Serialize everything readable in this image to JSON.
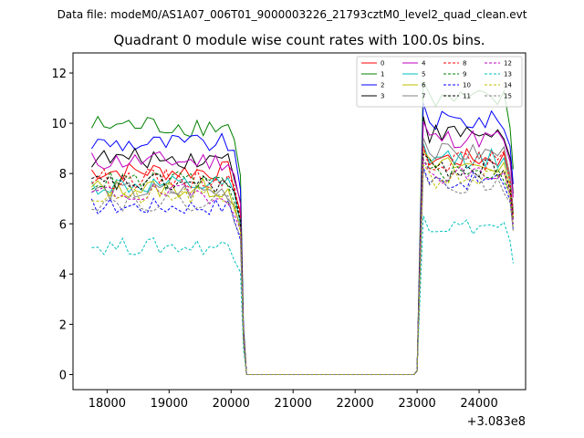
{
  "suptitle": "Data file: modeM0/AS1A07_006T01_9000003226_21793cztM0_level2_quad_clean.evt",
  "chart_data": {
    "type": "line",
    "title": "Quadrant 0 module wise count rates with 100.0s bins.",
    "xlabel": "",
    "ylabel": "",
    "x_offset_label": "+3.083e8",
    "xlim": [
      17450,
      24750
    ],
    "ylim": [
      -0.6,
      12.8
    ],
    "xticks": [
      18000,
      19000,
      20000,
      21000,
      22000,
      23000,
      24000
    ],
    "xtick_labels": [
      "18000",
      "19000",
      "20000",
      "21000",
      "22000",
      "23000",
      "24000"
    ],
    "yticks": [
      0,
      2,
      4,
      6,
      8,
      10,
      12
    ],
    "ytick_labels": [
      "0",
      "2",
      "4",
      "6",
      "8",
      "10",
      "12"
    ],
    "grid": false,
    "legend_position": "top-right",
    "segments": {
      "seg1_start": 17750,
      "seg1_end": 20150,
      "seg2_start": 23100,
      "seg2_end": 24550,
      "step": 100
    },
    "series": [
      {
        "name": "0",
        "color": "#ff0000",
        "dash": false,
        "level1": 8.1,
        "level2": 8.6,
        "noise": 0.4
      },
      {
        "name": "1",
        "color": "#008000",
        "dash": false,
        "level1": 9.9,
        "level2": 10.9,
        "noise": 0.45
      },
      {
        "name": "2",
        "color": "#0000ff",
        "dash": false,
        "level1": 9.2,
        "level2": 10.1,
        "noise": 0.4
      },
      {
        "name": "3",
        "color": "#000000",
        "dash": false,
        "level1": 8.6,
        "level2": 9.6,
        "noise": 0.4
      },
      {
        "name": "4",
        "color": "#bf00bf",
        "dash": false,
        "level1": 8.5,
        "level2": 9.4,
        "noise": 0.4
      },
      {
        "name": "5",
        "color": "#00bfbf",
        "dash": false,
        "level1": 7.5,
        "level2": 8.6,
        "noise": 0.4
      },
      {
        "name": "6",
        "color": "#bfbf00",
        "dash": false,
        "level1": 7.4,
        "level2": 8.3,
        "noise": 0.4
      },
      {
        "name": "7",
        "color": "#808080",
        "dash": false,
        "level1": 7.3,
        "level2": 8.8,
        "noise": 0.4
      },
      {
        "name": "8",
        "color": "#ff0000",
        "dash": true,
        "level1": 7.8,
        "level2": 8.5,
        "noise": 0.4
      },
      {
        "name": "9",
        "color": "#008000",
        "dash": true,
        "level1": 7.7,
        "level2": 8.0,
        "noise": 0.4
      },
      {
        "name": "10",
        "color": "#0000ff",
        "dash": true,
        "level1": 6.7,
        "level2": 7.7,
        "noise": 0.35
      },
      {
        "name": "11",
        "color": "#000000",
        "dash": true,
        "level1": 7.6,
        "level2": 8.2,
        "noise": 0.4
      },
      {
        "name": "12",
        "color": "#bf00bf",
        "dash": true,
        "level1": 7.2,
        "level2": 8.0,
        "noise": 0.4
      },
      {
        "name": "13",
        "color": "#00bfbf",
        "dash": true,
        "level1": 5.1,
        "level2": 5.9,
        "noise": 0.35
      },
      {
        "name": "14",
        "color": "#bfbf00",
        "dash": true,
        "level1": 7.1,
        "level2": 7.8,
        "noise": 0.4
      },
      {
        "name": "15",
        "color": "#808080",
        "dash": true,
        "level1": 6.9,
        "level2": 7.6,
        "noise": 0.4
      }
    ]
  }
}
